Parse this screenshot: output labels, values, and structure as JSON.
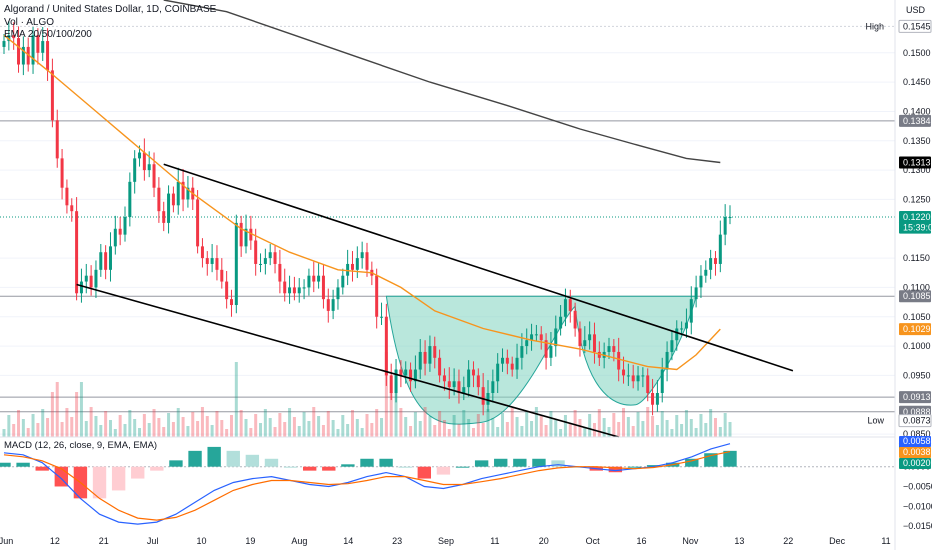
{
  "header": {
    "symbol_line": "Algorand / United States Dollar, 1D, COINBASE",
    "volume_line": "Vol · ALGO",
    "ema_line": "EMA 20/50/100/200"
  },
  "currency": "USD",
  "macd_label": "MACD (12, 26, close, 9, EMA, EMA)",
  "colors": {
    "up": "#089981",
    "down": "#f23645",
    "ema50": "#f7941d",
    "ema200": "#444444",
    "cup_fill": "#7fd3c0",
    "macd": "#2962ff",
    "signal": "#ff6d00"
  },
  "price_tags": [
    {
      "label": "High",
      "value": "0.1545",
      "price": 0.1545,
      "style": "high"
    },
    {
      "label": "",
      "value": "0.1384",
      "price": 0.1384,
      "style": "grey"
    },
    {
      "label": "",
      "value": "0.1313",
      "price": 0.1313,
      "style": "black"
    },
    {
      "label": "",
      "value": "0.1220",
      "price": 0.122,
      "style": "green"
    },
    {
      "label": "",
      "value": "15:39:09",
      "price": 0.1202,
      "style": "green"
    },
    {
      "label": "",
      "value": "0.1085",
      "price": 0.1085,
      "style": "grey"
    },
    {
      "label": "",
      "value": "0.1029",
      "price": 0.1029,
      "style": "orange"
    },
    {
      "label": "",
      "value": "0.0913",
      "price": 0.0913,
      "style": "grey"
    },
    {
      "label": "",
      "value": "0.0888",
      "price": 0.0888,
      "style": "grey"
    },
    {
      "label": "Low",
      "value": "0.0873",
      "price": 0.0873,
      "style": "low"
    },
    {
      "label": "",
      "value": "8.517M",
      "price": 0.0826,
      "style": "green"
    }
  ],
  "macd_tags": [
    {
      "value": "0.0058",
      "style": "blue"
    },
    {
      "value": "0.0038",
      "style": "orange"
    },
    {
      "value": "0.0020",
      "style": "green"
    }
  ],
  "chart_data": {
    "type": "candlestick",
    "title": "Algorand / United States Dollar, 1D, COINBASE",
    "price_axis": {
      "ticks": [
        0.15,
        0.145,
        0.14,
        0.135,
        0.13,
        0.125,
        0.115,
        0.11,
        0.105,
        0.1,
        0.095,
        0.085
      ],
      "ylim": [
        0.0845,
        0.159
      ]
    },
    "macd_axis": {
      "ticks": [
        "0.0000",
        "−0.0050",
        "−0.0100",
        "−0.0150"
      ],
      "ylim": [
        -0.0165,
        0.0075
      ]
    },
    "x_ticks": [
      "Jun",
      "12",
      "21",
      "Jul",
      "10",
      "19",
      "Aug",
      "14",
      "23",
      "Sep",
      "11",
      "20",
      "Oct",
      "16",
      "Nov",
      "13",
      "22",
      "Dec",
      "11"
    ],
    "start_date": "2023-06-01",
    "horizontal_levels": [
      0.1384,
      0.1085,
      0.0913,
      0.0888
    ],
    "close_series": [
      0.152,
      0.153,
      0.1525,
      0.148,
      0.151,
      0.148,
      0.153,
      0.15,
      0.152,
      0.147,
      0.1385,
      0.132,
      0.127,
      0.124,
      0.123,
      0.109,
      0.111,
      0.112,
      0.11,
      0.113,
      0.116,
      0.113,
      0.117,
      0.12,
      0.119,
      0.122,
      0.128,
      0.132,
      0.133,
      0.13,
      0.131,
      0.127,
      0.123,
      0.121,
      0.126,
      0.124,
      0.128,
      0.125,
      0.127,
      0.125,
      0.117,
      0.115,
      0.114,
      0.115,
      0.113,
      0.111,
      0.108,
      0.107,
      0.121,
      0.117,
      0.12,
      0.118,
      0.114,
      0.114,
      0.115,
      0.116,
      0.114,
      0.111,
      0.109,
      0.11,
      0.109,
      0.11,
      0.11,
      0.112,
      0.111,
      0.112,
      0.108,
      0.106,
      0.108,
      0.11,
      0.112,
      0.114,
      0.113,
      0.115,
      0.116,
      0.113,
      0.112,
      0.105,
      0.105,
      0.095,
      0.092,
      0.096,
      0.095,
      0.096,
      0.094,
      0.096,
      0.099,
      0.097,
      0.1,
      0.098,
      0.095,
      0.094,
      0.093,
      0.094,
      0.092,
      0.093,
      0.096,
      0.095,
      0.093,
      0.09,
      0.092,
      0.094,
      0.097,
      0.098,
      0.097,
      0.096,
      0.098,
      0.1,
      0.101,
      0.102,
      0.102,
      0.101,
      0.098,
      0.1,
      0.103,
      0.105,
      0.108,
      0.106,
      0.103,
      0.1,
      0.101,
      0.102,
      0.099,
      0.098,
      0.099,
      0.1,
      0.099,
      0.096,
      0.095,
      0.095,
      0.094,
      0.095,
      0.095,
      0.092,
      0.09,
      0.092,
      0.096,
      0.099,
      0.101,
      0.103,
      0.103,
      0.104,
      0.108,
      0.11,
      0.112,
      0.113,
      0.115,
      0.114,
      0.119,
      0.122,
      0.122
    ],
    "ema50_series": [
      [
        0.153,
        0
      ],
      [
        0.147,
        9
      ],
      [
        0.14,
        19
      ],
      [
        0.133,
        29
      ],
      [
        0.126,
        39
      ],
      [
        0.12,
        49
      ],
      [
        0.116,
        59
      ],
      [
        0.113,
        69
      ],
      [
        0.1125,
        76
      ],
      [
        0.11,
        82
      ],
      [
        0.106,
        89
      ],
      [
        0.103,
        99
      ],
      [
        0.101,
        109
      ],
      [
        0.0995,
        119
      ],
      [
        0.098,
        126
      ],
      [
        0.0965,
        133
      ],
      [
        0.096,
        139
      ],
      [
        0.0985,
        143
      ],
      [
        0.1029,
        148
      ]
    ],
    "ema200_series": [
      [
        0.159,
        33
      ],
      [
        0.157,
        46
      ],
      [
        0.153,
        60
      ],
      [
        0.149,
        74
      ],
      [
        0.145,
        88
      ],
      [
        0.141,
        104
      ],
      [
        0.137,
        119
      ],
      [
        0.134,
        132
      ],
      [
        0.132,
        141
      ],
      [
        0.1313,
        148
      ]
    ],
    "trendlines": [
      {
        "from": [
          0.131,
          33
        ],
        "to": [
          0.0958,
          163
        ]
      },
      {
        "from": [
          0.1105,
          15
        ],
        "to": [
          0.0845,
          127
        ]
      }
    ],
    "macd_series": [
      0.0035,
      0.003,
      0.001,
      -0.003,
      -0.008,
      -0.012,
      -0.014,
      -0.0145,
      -0.014,
      -0.012,
      -0.009,
      -0.006,
      -0.004,
      -0.003,
      -0.0025,
      -0.0035,
      -0.0045,
      -0.005,
      -0.004,
      -0.0025,
      -0.0015,
      -0.0025,
      -0.005,
      -0.0055,
      -0.0045,
      -0.003,
      -0.002,
      -0.001,
      0.0,
      0.0005,
      0.0,
      -0.0005,
      -0.001,
      -0.0005,
      0.0,
      0.001,
      0.0025,
      0.0045,
      0.0058
    ],
    "signal_series": [
      0.003,
      0.0025,
      0.0015,
      -0.0005,
      -0.004,
      -0.008,
      -0.011,
      -0.013,
      -0.0135,
      -0.0128,
      -0.011,
      -0.0085,
      -0.006,
      -0.0045,
      -0.0035,
      -0.0035,
      -0.004,
      -0.0045,
      -0.0043,
      -0.0035,
      -0.0025,
      -0.0025,
      -0.0035,
      -0.0045,
      -0.0045,
      -0.0038,
      -0.003,
      -0.002,
      -0.001,
      -0.0003,
      0.0,
      0.0,
      -0.0003,
      -0.0005,
      -0.0002,
      0.0005,
      0.0015,
      0.0028,
      0.0038
    ]
  }
}
